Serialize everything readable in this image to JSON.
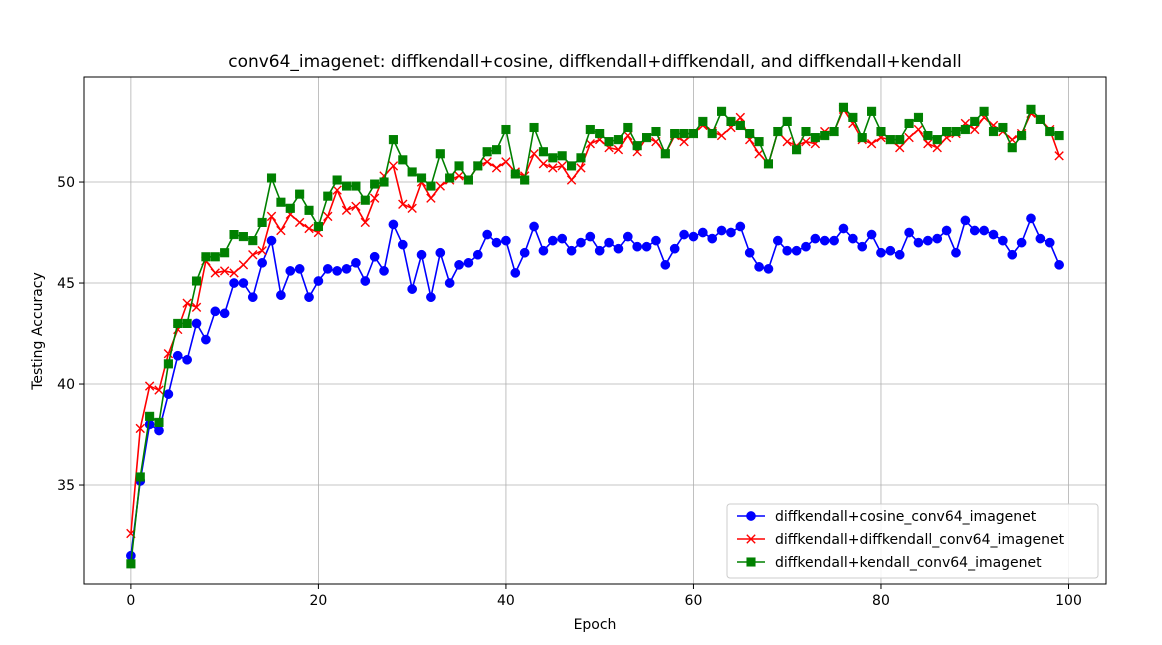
{
  "chart_data": {
    "type": "line",
    "title": "conv64_imagenet: diffkendall+cosine, diffkendall+diffkendall, and diffkendall+kendall",
    "xlabel": "Epoch",
    "ylabel": "Testing Accuracy",
    "xlim": [
      -5,
      104
    ],
    "ylim": [
      30.1,
      55.2
    ],
    "xticks": [
      0,
      20,
      40,
      60,
      80,
      100
    ],
    "yticks": [
      35,
      40,
      45,
      50
    ],
    "grid": true,
    "legend_position": "lower-right",
    "series": [
      {
        "name": "diffkendall+cosine_conv64_imagenet",
        "color": "#0000ff",
        "marker": "circle",
        "values": [
          31.5,
          35.2,
          38.0,
          37.7,
          39.5,
          41.4,
          41.2,
          43.0,
          42.2,
          43.6,
          43.5,
          45.0,
          45.0,
          44.3,
          46.0,
          47.1,
          44.4,
          45.6,
          45.7,
          44.3,
          45.1,
          45.7,
          45.6,
          45.7,
          46.0,
          45.1,
          46.3,
          45.6,
          47.9,
          46.9,
          44.7,
          46.4,
          44.3,
          46.5,
          45.0,
          45.9,
          46.0,
          46.4,
          47.4,
          47.0,
          47.1,
          45.5,
          46.5,
          47.8,
          46.6,
          47.1,
          47.2,
          46.6,
          47.0,
          47.3,
          46.6,
          47.0,
          46.7,
          47.3,
          46.8,
          46.8,
          47.1,
          45.9,
          46.7,
          47.4,
          47.3,
          47.5,
          47.2,
          47.6,
          47.5,
          47.8,
          46.5,
          45.8,
          45.7,
          47.1,
          46.6,
          46.6,
          46.8,
          47.2,
          47.1,
          47.1,
          47.7,
          47.2,
          46.8,
          47.4,
          46.5,
          46.6,
          46.4,
          47.5,
          47.0,
          47.1,
          47.2,
          47.6,
          46.5,
          48.1,
          47.6,
          47.6,
          47.4,
          47.1,
          46.4,
          47.0,
          48.2,
          47.2,
          47.0,
          45.9
        ]
      },
      {
        "name": "diffkendall+diffkendall_conv64_imagenet",
        "color": "#ff0000",
        "marker": "x",
        "values": [
          32.6,
          37.8,
          39.9,
          39.7,
          41.5,
          42.7,
          44.0,
          43.8,
          46.1,
          45.5,
          45.6,
          45.5,
          45.9,
          46.4,
          46.6,
          48.3,
          47.6,
          48.4,
          48.0,
          47.7,
          47.5,
          48.3,
          49.6,
          48.6,
          48.8,
          48.0,
          49.2,
          50.3,
          50.8,
          48.9,
          48.7,
          50.0,
          49.2,
          49.8,
          50.1,
          50.3,
          50.1,
          50.8,
          51.0,
          50.7,
          51.0,
          50.5,
          50.3,
          51.4,
          50.9,
          50.7,
          50.8,
          50.1,
          50.7,
          51.9,
          52.1,
          51.7,
          51.6,
          52.3,
          51.5,
          52.2,
          52.0,
          51.4,
          52.3,
          52.0,
          52.4,
          52.8,
          52.5,
          52.3,
          52.7,
          53.2,
          52.1,
          51.4,
          50.9,
          52.5,
          52.0,
          51.8,
          52.0,
          51.9,
          52.5,
          52.5,
          53.6,
          52.9,
          52.1,
          51.9,
          52.2,
          52.1,
          51.7,
          52.2,
          52.6,
          51.9,
          51.7,
          52.2,
          52.4,
          52.9,
          52.6,
          53.2,
          52.8,
          52.5,
          52.1,
          52.4,
          53.4,
          53.1,
          52.6,
          51.3
        ]
      },
      {
        "name": "diffkendall+kendall_conv64_imagenet",
        "color": "#008000",
        "marker": "square",
        "values": [
          31.1,
          35.4,
          38.4,
          38.1,
          41.0,
          43.0,
          43.0,
          45.1,
          46.3,
          46.3,
          46.5,
          47.4,
          47.3,
          47.1,
          48.0,
          50.2,
          49.0,
          48.7,
          49.4,
          48.6,
          47.8,
          49.3,
          50.1,
          49.8,
          49.8,
          49.1,
          49.9,
          50.0,
          52.1,
          51.1,
          50.5,
          50.2,
          49.8,
          51.4,
          50.2,
          50.8,
          50.1,
          50.8,
          51.5,
          51.6,
          52.6,
          50.4,
          50.1,
          52.7,
          51.5,
          51.2,
          51.3,
          50.8,
          51.2,
          52.6,
          52.4,
          52.0,
          52.1,
          52.7,
          51.8,
          52.2,
          52.5,
          51.4,
          52.4,
          52.4,
          52.4,
          53.0,
          52.4,
          53.5,
          53.0,
          52.8,
          52.4,
          52.0,
          50.9,
          52.5,
          53.0,
          51.6,
          52.5,
          52.2,
          52.3,
          52.5,
          53.7,
          53.2,
          52.2,
          53.5,
          52.5,
          52.1,
          52.1,
          52.9,
          53.2,
          52.3,
          52.1,
          52.5,
          52.5,
          52.6,
          53.0,
          53.5,
          52.5,
          52.7,
          51.7,
          52.3,
          53.6,
          53.1,
          52.5,
          52.3
        ]
      }
    ]
  }
}
